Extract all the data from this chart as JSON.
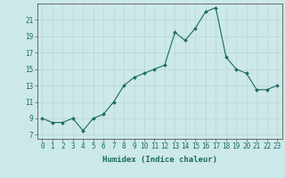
{
  "xlabel": "Humidex (Indice chaleur)",
  "x": [
    0,
    1,
    2,
    3,
    4,
    5,
    6,
    7,
    8,
    9,
    10,
    11,
    12,
    13,
    14,
    15,
    16,
    17,
    18,
    19,
    20,
    21,
    22,
    23
  ],
  "y": [
    9,
    8.5,
    8.5,
    9,
    7.5,
    9,
    9.5,
    11,
    13,
    14,
    14.5,
    15,
    15.5,
    19.5,
    18.5,
    20,
    22,
    22.5,
    16.5,
    15,
    14.5,
    12.5,
    12.5,
    13
  ],
  "xlim": [
    -0.5,
    23.5
  ],
  "ylim": [
    6.5,
    23
  ],
  "yticks": [
    7,
    9,
    11,
    13,
    15,
    17,
    19,
    21
  ],
  "xticks": [
    0,
    1,
    2,
    3,
    4,
    5,
    6,
    7,
    8,
    9,
    10,
    11,
    12,
    13,
    14,
    15,
    16,
    17,
    18,
    19,
    20,
    21,
    22,
    23
  ],
  "line_color": "#1a6b5e",
  "marker_color": "#1a6b5e",
  "bg_color": "#cce8e8",
  "grid_color": "#b8d8d8",
  "axis_color": "#555555",
  "text_color": "#1a6b5e",
  "tick_fontsize": 5.5,
  "xlabel_fontsize": 6.5
}
